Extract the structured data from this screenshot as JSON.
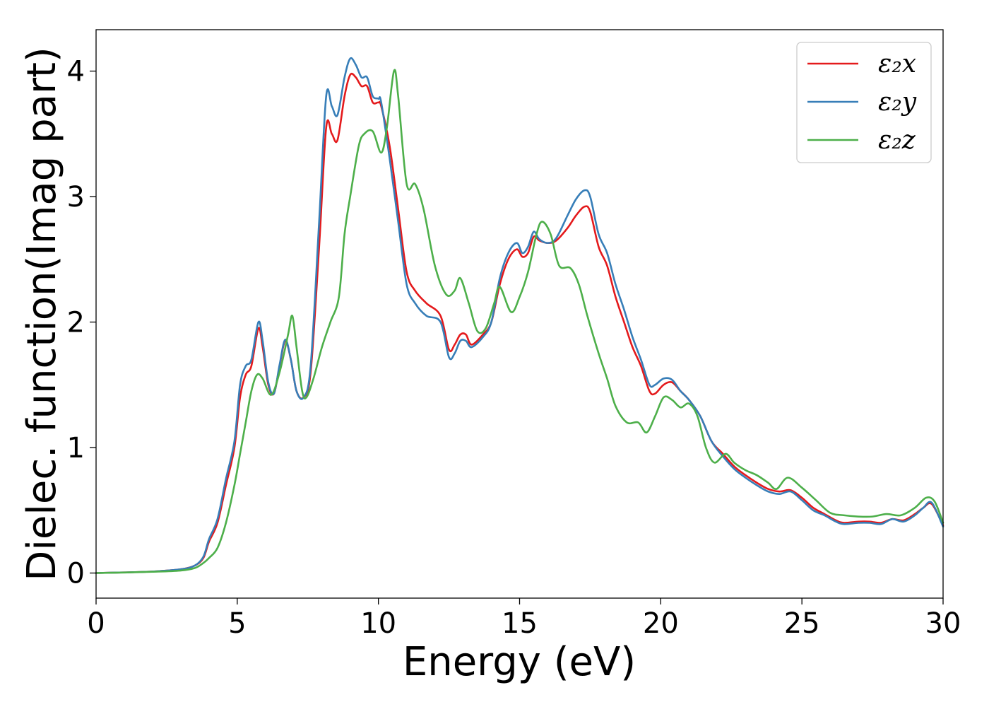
{
  "chart_data": {
    "type": "line",
    "title": "",
    "xlabel": "Energy (eV)",
    "ylabel": "Dielec. function(Imag part)",
    "xlim": [
      0,
      30
    ],
    "ylim": [
      -0.2,
      4.33
    ],
    "xticks": [
      0,
      5,
      10,
      15,
      20,
      25,
      30
    ],
    "yticks": [
      0,
      1,
      2,
      3,
      4
    ],
    "grid": false,
    "legend_position": "top-right",
    "series": [
      {
        "name": "ε₂x",
        "color": "#e41a1c",
        "points": [
          [
            0,
            0
          ],
          [
            1,
            0.005
          ],
          [
            2,
            0.012
          ],
          [
            3,
            0.03
          ],
          [
            3.5,
            0.06
          ],
          [
            3.8,
            0.12
          ],
          [
            4.0,
            0.25
          ],
          [
            4.3,
            0.4
          ],
          [
            4.6,
            0.7
          ],
          [
            4.9,
            1.0
          ],
          [
            5.1,
            1.4
          ],
          [
            5.3,
            1.58
          ],
          [
            5.5,
            1.65
          ],
          [
            5.75,
            1.95
          ],
          [
            5.9,
            1.8
          ],
          [
            6.1,
            1.5
          ],
          [
            6.3,
            1.43
          ],
          [
            6.5,
            1.65
          ],
          [
            6.7,
            1.85
          ],
          [
            6.9,
            1.7
          ],
          [
            7.1,
            1.45
          ],
          [
            7.35,
            1.4
          ],
          [
            7.6,
            1.6
          ],
          [
            7.9,
            2.6
          ],
          [
            8.15,
            3.55
          ],
          [
            8.35,
            3.5
          ],
          [
            8.55,
            3.45
          ],
          [
            8.8,
            3.8
          ],
          [
            9.0,
            3.97
          ],
          [
            9.2,
            3.95
          ],
          [
            9.4,
            3.88
          ],
          [
            9.6,
            3.88
          ],
          [
            9.8,
            3.75
          ],
          [
            10.0,
            3.75
          ],
          [
            10.1,
            3.72
          ],
          [
            10.4,
            3.4
          ],
          [
            10.7,
            2.9
          ],
          [
            11.0,
            2.4
          ],
          [
            11.3,
            2.25
          ],
          [
            11.7,
            2.15
          ],
          [
            12.2,
            2.05
          ],
          [
            12.5,
            1.78
          ],
          [
            12.7,
            1.82
          ],
          [
            12.9,
            1.9
          ],
          [
            13.1,
            1.9
          ],
          [
            13.3,
            1.82
          ],
          [
            13.7,
            1.9
          ],
          [
            14.0,
            2.0
          ],
          [
            14.3,
            2.3
          ],
          [
            14.6,
            2.5
          ],
          [
            14.9,
            2.58
          ],
          [
            15.1,
            2.52
          ],
          [
            15.3,
            2.55
          ],
          [
            15.5,
            2.68
          ],
          [
            15.7,
            2.65
          ],
          [
            16.0,
            2.63
          ],
          [
            16.3,
            2.65
          ],
          [
            16.7,
            2.75
          ],
          [
            17.0,
            2.85
          ],
          [
            17.3,
            2.92
          ],
          [
            17.5,
            2.88
          ],
          [
            17.8,
            2.6
          ],
          [
            18.1,
            2.45
          ],
          [
            18.4,
            2.2
          ],
          [
            18.7,
            2.0
          ],
          [
            19.0,
            1.8
          ],
          [
            19.3,
            1.65
          ],
          [
            19.6,
            1.45
          ],
          [
            19.8,
            1.43
          ],
          [
            20.1,
            1.5
          ],
          [
            20.4,
            1.52
          ],
          [
            20.7,
            1.45
          ],
          [
            21.0,
            1.38
          ],
          [
            21.4,
            1.25
          ],
          [
            21.8,
            1.05
          ],
          [
            22.2,
            0.95
          ],
          [
            22.6,
            0.85
          ],
          [
            23.0,
            0.78
          ],
          [
            23.4,
            0.72
          ],
          [
            23.8,
            0.67
          ],
          [
            24.2,
            0.65
          ],
          [
            24.6,
            0.66
          ],
          [
            25.0,
            0.6
          ],
          [
            25.4,
            0.52
          ],
          [
            25.8,
            0.47
          ],
          [
            26.2,
            0.42
          ],
          [
            26.5,
            0.4
          ],
          [
            27.0,
            0.41
          ],
          [
            27.4,
            0.41
          ],
          [
            27.8,
            0.4
          ],
          [
            28.2,
            0.43
          ],
          [
            28.6,
            0.42
          ],
          [
            29.0,
            0.47
          ],
          [
            29.3,
            0.52
          ],
          [
            29.6,
            0.55
          ],
          [
            30.0,
            0.38
          ]
        ]
      },
      {
        "name": "ε₂y",
        "color": "#377eb8",
        "points": [
          [
            0,
            0
          ],
          [
            1,
            0.005
          ],
          [
            2,
            0.012
          ],
          [
            3,
            0.03
          ],
          [
            3.5,
            0.06
          ],
          [
            3.8,
            0.13
          ],
          [
            4.0,
            0.27
          ],
          [
            4.3,
            0.43
          ],
          [
            4.6,
            0.75
          ],
          [
            4.9,
            1.05
          ],
          [
            5.1,
            1.5
          ],
          [
            5.3,
            1.65
          ],
          [
            5.5,
            1.7
          ],
          [
            5.75,
            2.0
          ],
          [
            5.9,
            1.85
          ],
          [
            6.1,
            1.52
          ],
          [
            6.3,
            1.43
          ],
          [
            6.5,
            1.66
          ],
          [
            6.7,
            1.86
          ],
          [
            6.9,
            1.7
          ],
          [
            7.1,
            1.45
          ],
          [
            7.35,
            1.4
          ],
          [
            7.6,
            1.65
          ],
          [
            7.9,
            2.8
          ],
          [
            8.15,
            3.8
          ],
          [
            8.35,
            3.72
          ],
          [
            8.55,
            3.65
          ],
          [
            8.8,
            3.95
          ],
          [
            9.0,
            4.1
          ],
          [
            9.2,
            4.05
          ],
          [
            9.4,
            3.95
          ],
          [
            9.6,
            3.95
          ],
          [
            9.8,
            3.8
          ],
          [
            10.0,
            3.78
          ],
          [
            10.1,
            3.75
          ],
          [
            10.4,
            3.3
          ],
          [
            10.7,
            2.8
          ],
          [
            11.0,
            2.3
          ],
          [
            11.3,
            2.15
          ],
          [
            11.7,
            2.05
          ],
          [
            12.2,
            2.0
          ],
          [
            12.5,
            1.72
          ],
          [
            12.7,
            1.75
          ],
          [
            12.9,
            1.85
          ],
          [
            13.1,
            1.85
          ],
          [
            13.3,
            1.8
          ],
          [
            13.7,
            1.88
          ],
          [
            14.0,
            2.0
          ],
          [
            14.3,
            2.35
          ],
          [
            14.6,
            2.55
          ],
          [
            14.9,
            2.63
          ],
          [
            15.1,
            2.55
          ],
          [
            15.3,
            2.6
          ],
          [
            15.5,
            2.72
          ],
          [
            15.7,
            2.66
          ],
          [
            16.0,
            2.63
          ],
          [
            16.3,
            2.67
          ],
          [
            16.7,
            2.85
          ],
          [
            17.0,
            2.98
          ],
          [
            17.3,
            3.05
          ],
          [
            17.5,
            3.0
          ],
          [
            17.8,
            2.7
          ],
          [
            18.1,
            2.55
          ],
          [
            18.4,
            2.3
          ],
          [
            18.7,
            2.1
          ],
          [
            19.0,
            1.88
          ],
          [
            19.3,
            1.7
          ],
          [
            19.6,
            1.5
          ],
          [
            19.8,
            1.5
          ],
          [
            20.1,
            1.55
          ],
          [
            20.4,
            1.54
          ],
          [
            20.7,
            1.45
          ],
          [
            21.0,
            1.38
          ],
          [
            21.4,
            1.25
          ],
          [
            21.8,
            1.05
          ],
          [
            22.2,
            0.93
          ],
          [
            22.6,
            0.83
          ],
          [
            23.0,
            0.76
          ],
          [
            23.4,
            0.7
          ],
          [
            23.8,
            0.65
          ],
          [
            24.2,
            0.63
          ],
          [
            24.6,
            0.65
          ],
          [
            25.0,
            0.58
          ],
          [
            25.4,
            0.5
          ],
          [
            25.8,
            0.46
          ],
          [
            26.2,
            0.41
          ],
          [
            26.5,
            0.39
          ],
          [
            27.0,
            0.4
          ],
          [
            27.4,
            0.4
          ],
          [
            27.8,
            0.39
          ],
          [
            28.2,
            0.43
          ],
          [
            28.6,
            0.41
          ],
          [
            29.0,
            0.46
          ],
          [
            29.3,
            0.52
          ],
          [
            29.6,
            0.56
          ],
          [
            30.0,
            0.37
          ]
        ]
      },
      {
        "name": "ε₂z",
        "color": "#4daf4a",
        "points": [
          [
            0,
            0
          ],
          [
            1,
            0.004
          ],
          [
            2,
            0.01
          ],
          [
            3,
            0.02
          ],
          [
            3.5,
            0.04
          ],
          [
            3.8,
            0.08
          ],
          [
            4.0,
            0.12
          ],
          [
            4.3,
            0.2
          ],
          [
            4.6,
            0.4
          ],
          [
            4.9,
            0.7
          ],
          [
            5.1,
            0.95
          ],
          [
            5.3,
            1.2
          ],
          [
            5.5,
            1.45
          ],
          [
            5.7,
            1.58
          ],
          [
            5.9,
            1.55
          ],
          [
            6.2,
            1.42
          ],
          [
            6.5,
            1.6
          ],
          [
            6.8,
            1.9
          ],
          [
            6.95,
            2.05
          ],
          [
            7.1,
            1.8
          ],
          [
            7.3,
            1.45
          ],
          [
            7.45,
            1.4
          ],
          [
            7.7,
            1.55
          ],
          [
            8.0,
            1.8
          ],
          [
            8.3,
            2.0
          ],
          [
            8.6,
            2.2
          ],
          [
            8.8,
            2.7
          ],
          [
            9.0,
            3.0
          ],
          [
            9.3,
            3.4
          ],
          [
            9.5,
            3.5
          ],
          [
            9.8,
            3.52
          ],
          [
            10.1,
            3.35
          ],
          [
            10.3,
            3.55
          ],
          [
            10.55,
            4.0
          ],
          [
            10.7,
            3.8
          ],
          [
            11.0,
            3.1
          ],
          [
            11.3,
            3.1
          ],
          [
            11.6,
            2.9
          ],
          [
            12.0,
            2.45
          ],
          [
            12.4,
            2.22
          ],
          [
            12.7,
            2.25
          ],
          [
            12.9,
            2.35
          ],
          [
            13.2,
            2.15
          ],
          [
            13.5,
            1.93
          ],
          [
            13.8,
            1.95
          ],
          [
            14.1,
            2.15
          ],
          [
            14.3,
            2.28
          ],
          [
            14.7,
            2.08
          ],
          [
            15.0,
            2.2
          ],
          [
            15.3,
            2.4
          ],
          [
            15.6,
            2.7
          ],
          [
            15.8,
            2.8
          ],
          [
            16.1,
            2.7
          ],
          [
            16.4,
            2.45
          ],
          [
            16.8,
            2.43
          ],
          [
            17.1,
            2.3
          ],
          [
            17.4,
            2.05
          ],
          [
            17.8,
            1.75
          ],
          [
            18.1,
            1.55
          ],
          [
            18.4,
            1.33
          ],
          [
            18.8,
            1.2
          ],
          [
            19.2,
            1.2
          ],
          [
            19.5,
            1.12
          ],
          [
            19.8,
            1.25
          ],
          [
            20.1,
            1.4
          ],
          [
            20.4,
            1.38
          ],
          [
            20.7,
            1.32
          ],
          [
            21.0,
            1.35
          ],
          [
            21.3,
            1.25
          ],
          [
            21.6,
            1.0
          ],
          [
            21.9,
            0.88
          ],
          [
            22.3,
            0.95
          ],
          [
            22.6,
            0.88
          ],
          [
            23.0,
            0.82
          ],
          [
            23.4,
            0.78
          ],
          [
            23.8,
            0.72
          ],
          [
            24.1,
            0.67
          ],
          [
            24.5,
            0.76
          ],
          [
            25.0,
            0.68
          ],
          [
            25.5,
            0.58
          ],
          [
            26.0,
            0.48
          ],
          [
            26.5,
            0.46
          ],
          [
            27.0,
            0.45
          ],
          [
            27.5,
            0.45
          ],
          [
            28.0,
            0.47
          ],
          [
            28.5,
            0.46
          ],
          [
            29.0,
            0.52
          ],
          [
            29.4,
            0.6
          ],
          [
            29.7,
            0.57
          ],
          [
            30.0,
            0.4
          ]
        ]
      }
    ]
  }
}
